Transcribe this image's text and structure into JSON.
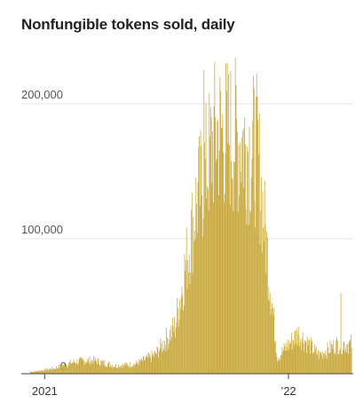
{
  "chart_data": {
    "type": "bar",
    "title": "Nonfungible tokens sold, daily",
    "xlabel": "",
    "ylabel": "",
    "ylim": [
      0,
      220000
    ],
    "grid": true,
    "bar_color": "#c9a83c",
    "y_ticks": [
      {
        "value": 0,
        "label": "0"
      },
      {
        "value": 100000,
        "label": "100,000"
      },
      {
        "value": 200000,
        "label": "200,000"
      }
    ],
    "x_ticks": [
      {
        "x": "2021-01-01",
        "label": "2021"
      },
      {
        "x": "2022-01-01",
        "label": "’22"
      }
    ],
    "x_range": [
      "2020-11-27",
      "2022-04-08"
    ],
    "series_monthly_approx": {
      "note_x": "month",
      "x": [
        "2020-12",
        "2021-01",
        "2021-02",
        "2021-03",
        "2021-04",
        "2021-05",
        "2021-06",
        "2021-07",
        "2021-08",
        "2021-09",
        "2021-10",
        "2021-11",
        "2021-12",
        "2022-01",
        "2022-02",
        "2022-03"
      ],
      "values": [
        1500,
        4000,
        9000,
        10000,
        6000,
        7000,
        14000,
        35000,
        125000,
        180000,
        175000,
        165000,
        12000,
        30000,
        14000,
        22000
      ]
    },
    "peaks": [
      {
        "x": "2021-08-27",
        "value": 225000
      },
      {
        "x": "2021-11-10",
        "value": 212000
      },
      {
        "x": "2022-03-20",
        "value": 60000
      }
    ]
  }
}
